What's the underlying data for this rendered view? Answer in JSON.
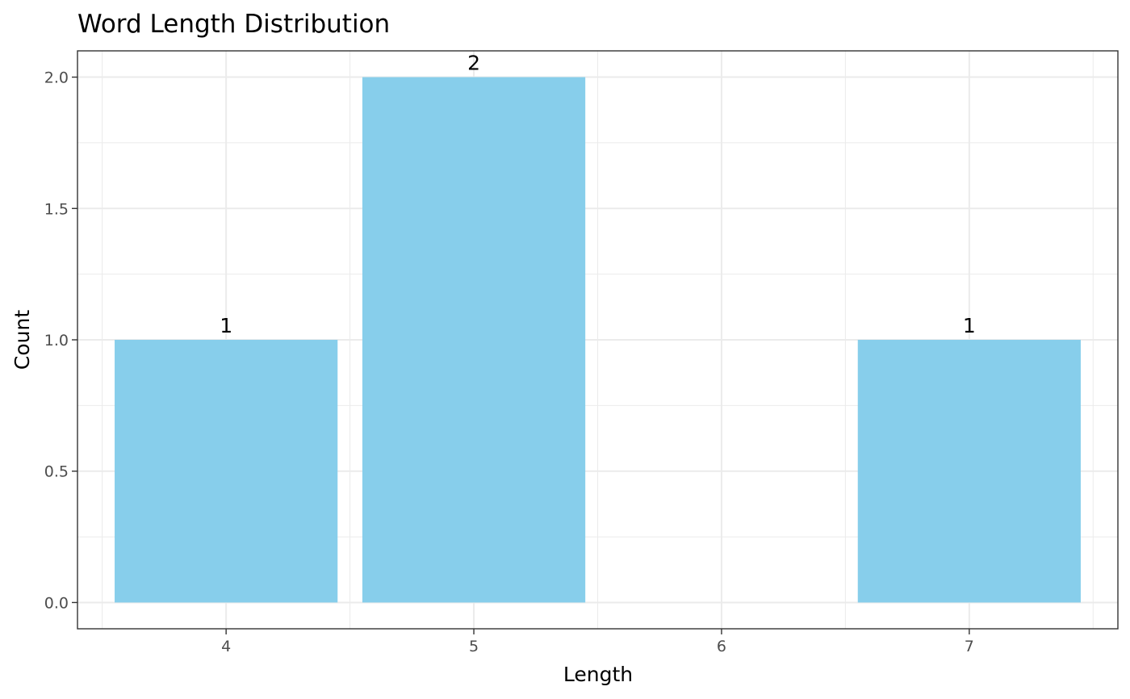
{
  "chart_data": {
    "type": "bar",
    "title": "Word Length Distribution",
    "xlabel": "Length",
    "ylabel": "Count",
    "x": [
      4,
      5,
      7
    ],
    "values": [
      1,
      2,
      1
    ],
    "data_labels": [
      "1",
      "2",
      "1"
    ],
    "xlim": [
      3.5,
      7.5
    ],
    "ylim": [
      0,
      2
    ],
    "x_ticks": [
      4,
      5,
      6,
      7
    ],
    "x_tick_labels": [
      "4",
      "5",
      "6",
      "7"
    ],
    "y_ticks": [
      0,
      0.5,
      1,
      1.5,
      2
    ],
    "y_tick_labels": [
      "0.0",
      "0.5",
      "1.0",
      "1.5",
      "2.0"
    ],
    "grid": true,
    "bar_color": "#87CEEB",
    "theme": "bw"
  }
}
